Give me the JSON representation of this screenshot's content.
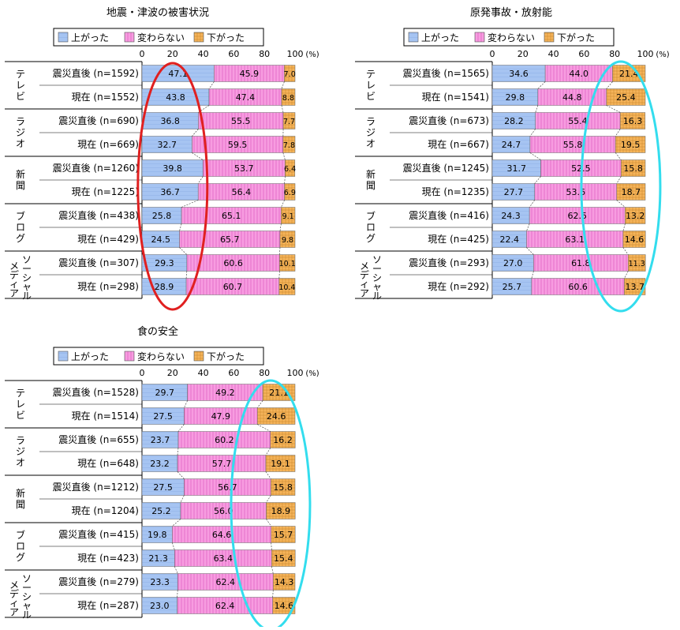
{
  "legend": {
    "up": "上がった",
    "same": "変わらない",
    "down": "下がった"
  },
  "axis": {
    "ticks": [
      0,
      20,
      40,
      60,
      80,
      100
    ],
    "unit": "(%)"
  },
  "colors": {
    "up": "#a6c4f2",
    "same": "#f79ce0",
    "down": "#f5b45a",
    "highlight_red": "#e02020",
    "highlight_cyan": "#33ddee"
  },
  "chart_data": [
    {
      "type": "bar",
      "stacked": true,
      "orientation": "horizontal",
      "title": "地震・津波の被害状況",
      "groups": [
        "テレビ",
        "ラジオ",
        "新聞",
        "ブログ",
        "ソーシャルメディア"
      ],
      "categories": [
        "震災直後 (n=1592)",
        "現在 (n=1552)",
        "震災直後 (n=690)",
        "現在 (n=669)",
        "震災直後 (n=1260)",
        "現在 (n=1225)",
        "震災直後 (n=438)",
        "現在 (n=429)",
        "震災直後 (n=307)",
        "現在 (n=298)"
      ],
      "series": [
        {
          "name": "上がった",
          "values": [
            47.1,
            43.8,
            36.8,
            32.7,
            39.8,
            36.7,
            25.8,
            24.5,
            29.3,
            28.9
          ]
        },
        {
          "name": "変わらない",
          "values": [
            45.9,
            47.4,
            55.5,
            59.5,
            53.7,
            56.4,
            65.1,
            65.7,
            60.6,
            60.7
          ]
        },
        {
          "name": "下がった",
          "values": [
            7.0,
            8.8,
            7.7,
            7.8,
            6.4,
            6.9,
            9.1,
            9.8,
            10.1,
            10.4
          ]
        }
      ],
      "xlim": [
        0,
        100
      ],
      "highlight": "red"
    },
    {
      "type": "bar",
      "stacked": true,
      "orientation": "horizontal",
      "title": "原発事故・放射能",
      "groups": [
        "テレビ",
        "ラジオ",
        "新聞",
        "ブログ",
        "ソーシャルメディア"
      ],
      "categories": [
        "震災直後 (n=1565)",
        "現在 (n=1541)",
        "震災直後 (n=673)",
        "現在 (n=667)",
        "震災直後 (n=1245)",
        "現在 (n=1235)",
        "震災直後 (n=416)",
        "現在 (n=425)",
        "震災直後 (n=293)",
        "現在 (n=292)"
      ],
      "series": [
        {
          "name": "上がった",
          "values": [
            34.6,
            29.8,
            28.2,
            24.7,
            31.7,
            27.7,
            24.3,
            22.4,
            27.0,
            25.7
          ]
        },
        {
          "name": "変わらない",
          "values": [
            44.0,
            44.8,
            55.4,
            55.8,
            52.5,
            53.6,
            62.5,
            63.1,
            61.8,
            60.6
          ]
        },
        {
          "name": "下がった",
          "values": [
            21.4,
            25.4,
            16.3,
            19.5,
            15.8,
            18.7,
            13.2,
            14.6,
            11.3,
            13.7
          ]
        }
      ],
      "xlim": [
        0,
        100
      ],
      "highlight": "cyan"
    },
    {
      "type": "bar",
      "stacked": true,
      "orientation": "horizontal",
      "title": "食の安全",
      "groups": [
        "テレビ",
        "ラジオ",
        "新聞",
        "ブログ",
        "ソーシャルメディア"
      ],
      "categories": [
        "震災直後 (n=1528)",
        "現在 (n=1514)",
        "震災直後 (n=655)",
        "現在 (n=648)",
        "震災直後 (n=1212)",
        "現在 (n=1204)",
        "震災直後 (n=415)",
        "現在 (n=423)",
        "震災直後 (n=279)",
        "現在 (n=287)"
      ],
      "series": [
        {
          "name": "上がった",
          "values": [
            29.7,
            27.5,
            23.7,
            23.2,
            27.5,
            25.2,
            19.8,
            21.3,
            23.3,
            23.0
          ]
        },
        {
          "name": "変わらない",
          "values": [
            49.2,
            47.9,
            60.2,
            57.7,
            56.7,
            56.0,
            64.6,
            63.4,
            62.4,
            62.4
          ]
        },
        {
          "name": "下がった",
          "values": [
            21.1,
            24.6,
            16.2,
            19.1,
            15.8,
            18.9,
            15.7,
            15.4,
            14.3,
            14.6
          ]
        }
      ],
      "xlim": [
        0,
        100
      ],
      "highlight": "cyan"
    }
  ]
}
